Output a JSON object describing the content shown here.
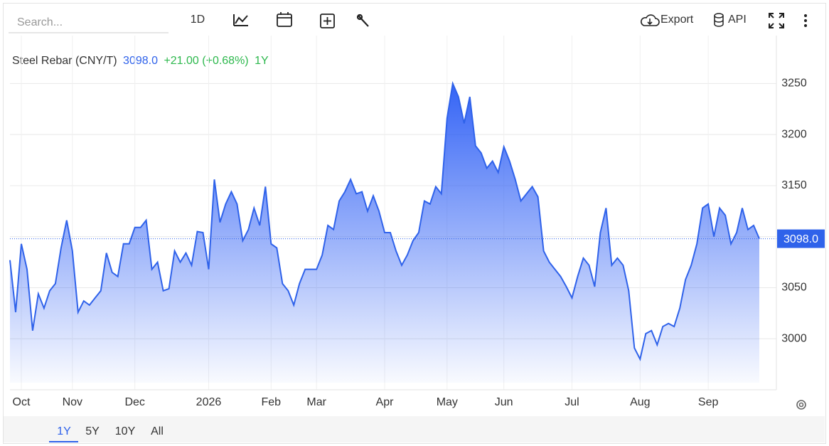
{
  "toolbar": {
    "search_placeholder": "Search...",
    "interval": "1D",
    "export": "Export",
    "api": "API"
  },
  "range_buttons": [
    "1Y",
    "5Y",
    "10Y",
    "All"
  ],
  "chart_data": {
    "type": "line",
    "title": "Steel Rebar (CNY/T)",
    "price": "3098.0",
    "change": "+21.00 (+0.68%)",
    "period": "1Y",
    "color": "#2f62ea",
    "categories": [
      null,
      null,
      "Oct",
      null,
      null,
      null,
      null,
      null,
      null,
      null,
      null,
      "Nov",
      null,
      null,
      null,
      null,
      null,
      null,
      null,
      null,
      null,
      null,
      "Dec",
      null,
      null,
      null,
      null,
      null,
      null,
      null,
      null,
      null,
      null,
      null,
      null,
      "2026",
      null,
      null,
      null,
      null,
      null,
      null,
      null,
      null,
      null,
      null,
      "Feb",
      null,
      null,
      null,
      null,
      null,
      null,
      null,
      "Mar",
      null,
      null,
      null,
      null,
      null,
      null,
      null,
      null,
      null,
      null,
      null,
      "Apr",
      null,
      null,
      null,
      null,
      null,
      null,
      null,
      null,
      null,
      null,
      "May",
      null,
      null,
      null,
      null,
      null,
      null,
      null,
      null,
      null,
      "Jun",
      null,
      null,
      null,
      null,
      null,
      null,
      null,
      null,
      null,
      null,
      null,
      "Jul",
      null,
      null,
      null,
      null,
      null,
      null,
      null,
      null,
      null,
      null,
      null,
      "Aug",
      null,
      null,
      null,
      null,
      null,
      null,
      null,
      null,
      null,
      null,
      null,
      "Sep",
      null,
      null,
      null,
      null,
      null,
      null,
      null,
      null,
      null
    ],
    "values": [
      3077,
      3026,
      3093,
      3068,
      3008,
      3044,
      3030,
      3047,
      3054,
      3089,
      3116,
      3086,
      3026,
      3037,
      3033,
      3040,
      3047,
      3084,
      3065,
      3061,
      3093,
      3093,
      3109,
      3109,
      3116,
      3068,
      3075,
      3047,
      3049,
      3086,
      3075,
      3084,
      3072,
      3105,
      3104,
      3068,
      3156,
      3114,
      3132,
      3144,
      3132,
      3096,
      3107,
      3128,
      3111,
      3149,
      3093,
      3089,
      3054,
      3047,
      3033,
      3054,
      3068,
      3068,
      3068,
      3082,
      3111,
      3107,
      3135,
      3144,
      3156,
      3142,
      3144,
      3125,
      3140,
      3125,
      3104,
      3104,
      3086,
      3072,
      3082,
      3096,
      3104,
      3135,
      3132,
      3149,
      3142,
      3216,
      3250,
      3237,
      3211,
      3237,
      3189,
      3182,
      3167,
      3174,
      3163,
      3188,
      3174,
      3156,
      3135,
      3142,
      3149,
      3139,
      3086,
      3075,
      3068,
      3061,
      3051,
      3040,
      3061,
      3079,
      3072,
      3051,
      3104,
      3128,
      3072,
      3079,
      3072,
      3047,
      2991,
      2980,
      3005,
      3008,
      2994,
      3012,
      3015,
      3012,
      3030,
      3058,
      3072,
      3093,
      3128,
      3132,
      3100,
      3128,
      3121,
      3093,
      3104,
      3128,
      3107,
      3111,
      3098
    ],
    "ylim": [
      2950,
      3290
    ],
    "yticks": [
      3000,
      3050,
      3100,
      3150,
      3200,
      3250
    ],
    "grid": true
  }
}
